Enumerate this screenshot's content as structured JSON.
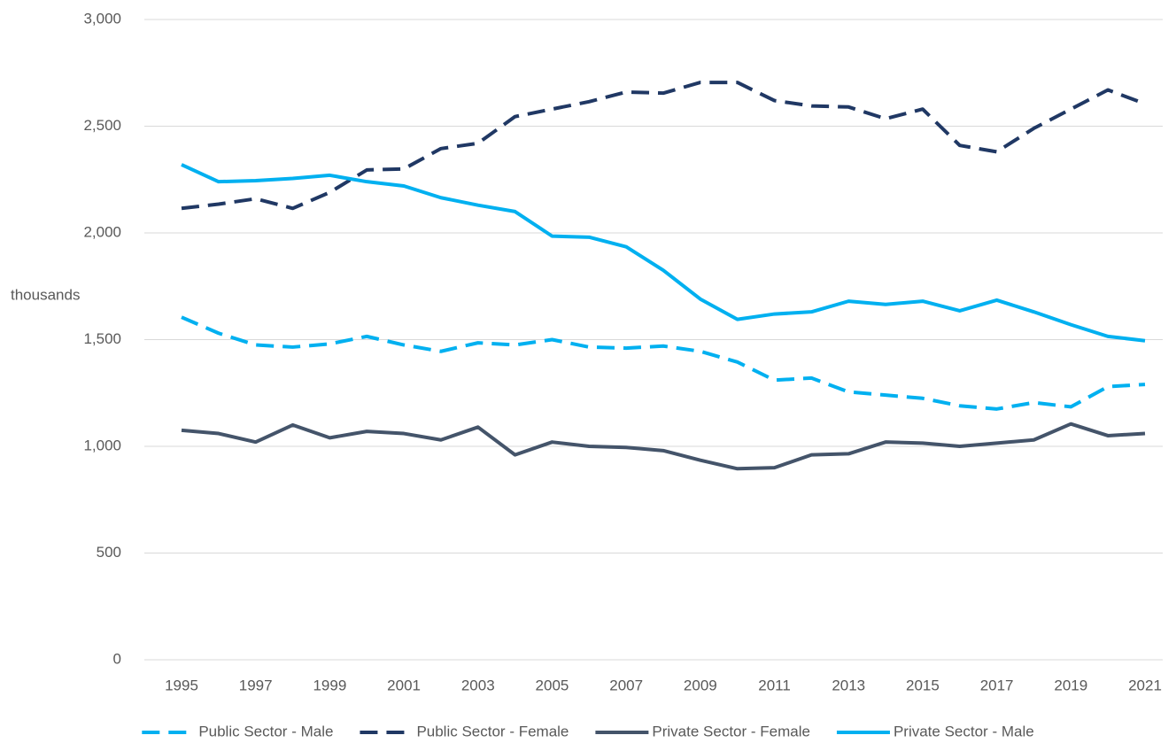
{
  "chart_data": {
    "type": "line",
    "y_label": "thousands",
    "categories": [
      "1995",
      null,
      "1997",
      null,
      "1999",
      null,
      "2001",
      null,
      "2003",
      null,
      "2005",
      null,
      "2007",
      null,
      "2009",
      null,
      "2011",
      null,
      "2013",
      null,
      "2015",
      null,
      "2017",
      null,
      "2019",
      null,
      "2021"
    ],
    "ylim": [
      0,
      3000
    ],
    "yticks": [
      0,
      500,
      {
        "value": 1000,
        "label": "1,000"
      },
      {
        "value": 1500,
        "label": "1,500"
      },
      {
        "value": 2000,
        "label": "2,000"
      },
      {
        "value": 2500,
        "label": "2,500"
      },
      {
        "value": 3000,
        "label": "3,000"
      }
    ],
    "grid": true,
    "legend": "bottom",
    "series": [
      {
        "name": "Public Sector - Male",
        "color": "#00b0f0",
        "style": "dashed",
        "values": [
          1605,
          1530,
          1475,
          1465,
          1480,
          1515,
          1475,
          1445,
          1485,
          1475,
          1500,
          1465,
          1460,
          1470,
          1445,
          1395,
          1310,
          1320,
          1255,
          1240,
          1225,
          1190,
          1175,
          1205,
          1185,
          1280,
          1290
        ]
      },
      {
        "name": "Public Sector - Female",
        "color": "#203864",
        "style": "dashed",
        "values": [
          2115,
          2135,
          2160,
          2115,
          2190,
          2295,
          2300,
          2395,
          2420,
          2545,
          2580,
          2615,
          2660,
          2655,
          2705,
          2705,
          2620,
          2595,
          2590,
          2535,
          2580,
          2410,
          2380,
          2490,
          2580,
          2670,
          2605
        ]
      },
      {
        "name": "Private Sector - Female",
        "color": "#44546a",
        "style": "solid",
        "values": [
          1075,
          1060,
          1020,
          1100,
          1040,
          1070,
          1060,
          1030,
          1090,
          960,
          1020,
          1000,
          995,
          980,
          935,
          895,
          900,
          960,
          965,
          1020,
          1015,
          1000,
          1015,
          1030,
          1105,
          1050,
          1060
        ]
      },
      {
        "name": "Private Sector - Male",
        "color": "#00b0f0",
        "style": "solid",
        "values": [
          2320,
          2240,
          2245,
          2255,
          2270,
          2240,
          2220,
          2165,
          2130,
          2100,
          1985,
          1980,
          1935,
          1825,
          1690,
          1595,
          1620,
          1630,
          1680,
          1665,
          1680,
          1635,
          1685,
          1630,
          1570,
          1515,
          1495
        ]
      }
    ]
  }
}
